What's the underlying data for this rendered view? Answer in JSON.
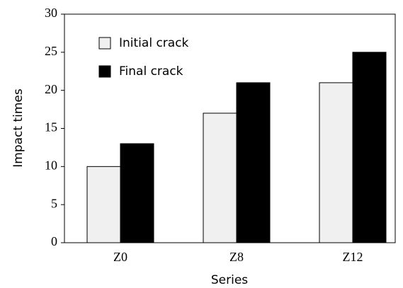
{
  "chart_data": {
    "type": "bar",
    "categories": [
      "Z0",
      "Z8",
      "Z12"
    ],
    "series": [
      {
        "name": "Initial crack",
        "color": "#f0f0f0",
        "values": [
          10,
          17,
          21
        ]
      },
      {
        "name": "Final crack",
        "color": "#000000",
        "values": [
          13,
          21,
          25
        ]
      }
    ],
    "xlabel": "Series",
    "ylabel": "Impact times",
    "ylim": [
      0,
      30
    ],
    "yticks": [
      0,
      5,
      10,
      15,
      20,
      25,
      30
    ],
    "grid": false
  }
}
